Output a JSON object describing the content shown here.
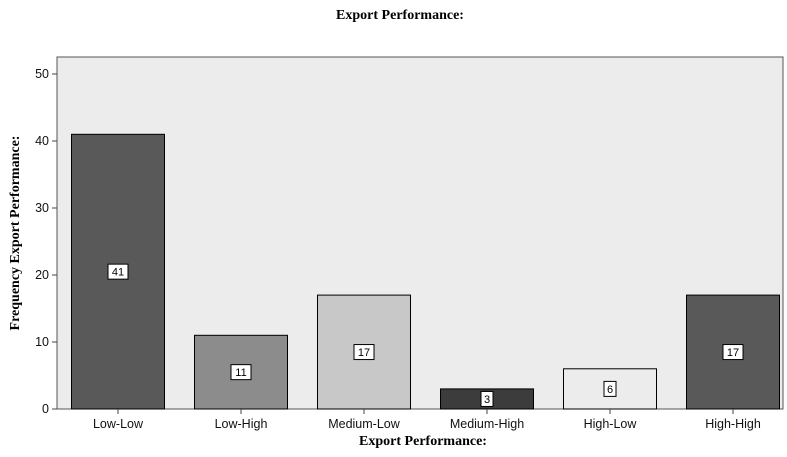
{
  "chart_data": {
    "type": "bar",
    "title": "Export Performance:",
    "xlabel": "Export Performance:",
    "ylabel": "Frequency Export Performance:",
    "categories": [
      "Low-Low",
      "Low-High",
      "Medium-Low",
      "Medium-High",
      "High-Low",
      "High-High"
    ],
    "values": [
      41,
      11,
      17,
      3,
      6,
      17
    ],
    "data_labels": [
      "41",
      "11",
      "17",
      "3",
      "6",
      "17"
    ],
    "bar_colors": [
      "#595959",
      "#8c8c8c",
      "#c8c8c8",
      "#3c3c3c",
      "#ececec",
      "#595959"
    ],
    "plot_background": "#ececec",
    "ylim": [
      0,
      50
    ],
    "yticks": [
      0,
      10,
      20,
      30,
      40,
      50
    ],
    "grid": false,
    "legend": "none"
  }
}
